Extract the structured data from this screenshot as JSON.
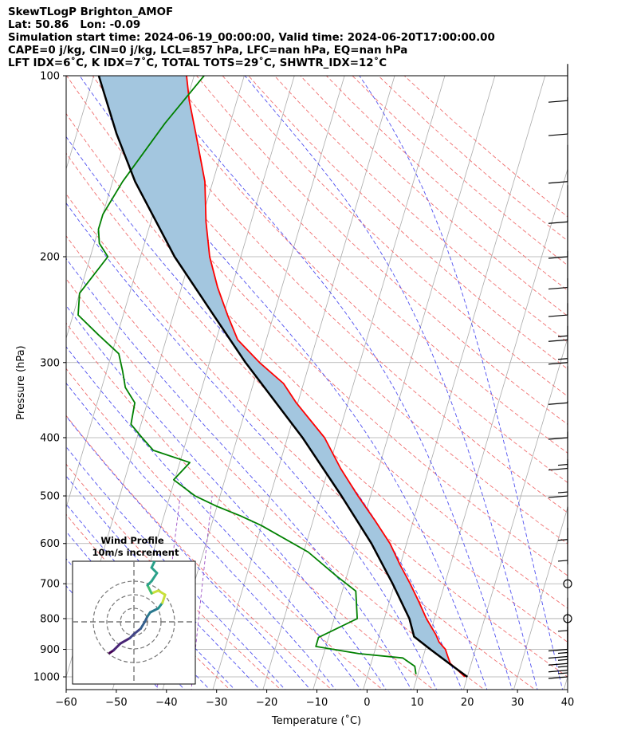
{
  "header": {
    "line1": "SkewTLogP Brighton_AMOF",
    "line2": "Lat: 50.86   Lon: -0.09",
    "line3": "Simulation start time: 2024-06-19_00:00:00, Valid time: 2024-06-20T17:00:00.00",
    "line4": "CAPE=0 j/kg, CIN=0 j/kg, LCL=857 hPa, LFC=nan hPa, EQ=nan hPa",
    "line5": "LFT IDX=6˚C, K IDX=7˚C, TOTAL TOTS=29˚C, SHWTR_IDX=12˚C"
  },
  "chart_data": {
    "type": "line",
    "subtype": "skew-t log-p",
    "xlabel": "Temperature (˚C)",
    "ylabel": "Pressure (hPa)",
    "xlim": [
      -60,
      40
    ],
    "ylim": [
      1050,
      100
    ],
    "y_scale": "log",
    "x_ticks": [
      "−60",
      "−50",
      "−40",
      "−30",
      "−20",
      "−10",
      "0",
      "10",
      "20",
      "30",
      "40"
    ],
    "y_ticks": [
      "100",
      "200",
      "300",
      "400",
      "500",
      "600",
      "700",
      "800",
      "900",
      "1000"
    ],
    "grid": true,
    "colors": {
      "temperature": "#ff0000",
      "dewpoint": "#008000",
      "parcel": "#000000",
      "cape_fill": "#a3c6df",
      "dry_adiabat": "#f07070",
      "moist_adiabat": "#5050f0",
      "mixing_ratio": "#9c4fc4",
      "isotherm": "#aaaaaa"
    },
    "series": [
      {
        "key": "temperature",
        "p": [
          1000,
          975,
          950,
          925,
          900,
          875,
          850,
          800,
          750,
          700,
          650,
          600,
          550,
          500,
          450,
          400,
          350,
          325,
          300,
          275,
          250,
          225,
          200,
          175,
          150,
          125,
          110,
          100
        ],
        "t": [
          19.5,
          17.7,
          15.8,
          14.9,
          14.0,
          12.3,
          11.2,
          8.4,
          5.9,
          3.1,
          -0.1,
          -3.3,
          -7.6,
          -12.5,
          -17.6,
          -22.6,
          -30.3,
          -34.0,
          -40.0,
          -45.7,
          -49.2,
          -52.8,
          -56.2,
          -59.0,
          -61.6,
          -66.2,
          -69.5,
          -71.5
        ]
      },
      {
        "key": "dewpoint",
        "p": [
          990,
          960,
          930,
          915,
          890,
          860,
          800,
          720,
          680,
          620,
          560,
          540,
          520,
          500,
          470,
          440,
          420,
          400,
          380,
          350,
          330,
          310,
          290,
          270,
          250,
          230,
          200,
          190,
          180,
          170,
          150,
          120,
          100
        ],
        "t": [
          9.6,
          8.9,
          6.0,
          -3.0,
          -12.0,
          -12.0,
          -5.4,
          -7.3,
          -12.0,
          -19.1,
          -30.0,
          -34.7,
          -40.1,
          -45.0,
          -50.2,
          -48.0,
          -56.0,
          -59.0,
          -62.0,
          -62.5,
          -65.3,
          -66.8,
          -68.6,
          -73.7,
          -79.0,
          -80.0,
          -76.5,
          -79.0,
          -80.0,
          -80.0,
          -78.0,
          -73.0,
          -68.0
        ]
      },
      {
        "key": "parcel",
        "p": [
          1000,
          950,
          900,
          857,
          800,
          700,
          600,
          500,
          400,
          300,
          250,
          200,
          150,
          125,
          100
        ],
        "t": [
          20.0,
          15.6,
          11.0,
          7.0,
          5.0,
          -0.4,
          -7.0,
          -15.8,
          -27.0,
          -42.8,
          -52.0,
          -63.2,
          -75.5,
          -82.0,
          -89.0
        ]
      }
    ],
    "wind_barbs": [
      {
        "p": 1000,
        "speed_kt": 13
      },
      {
        "p": 975,
        "speed_kt": 14
      },
      {
        "p": 950,
        "speed_kt": 15
      },
      {
        "p": 925,
        "speed_kt": 14
      },
      {
        "p": 900,
        "speed_kt": 11
      },
      {
        "p": 850,
        "speed_kt": 6
      },
      {
        "p": 800,
        "speed_kt": 0
      },
      {
        "p": 700,
        "speed_kt": 0
      },
      {
        "p": 650,
        "speed_kt": 5
      },
      {
        "p": 600,
        "speed_kt": 5
      },
      {
        "p": 500,
        "speed_kt": 15
      },
      {
        "p": 450,
        "speed_kt": 15
      },
      {
        "p": 400,
        "speed_kt": 10
      },
      {
        "p": 350,
        "speed_kt": 10
      },
      {
        "p": 300,
        "speed_kt": 15
      },
      {
        "p": 275,
        "speed_kt": 15
      },
      {
        "p": 250,
        "speed_kt": 10
      },
      {
        "p": 225,
        "speed_kt": 10
      },
      {
        "p": 200,
        "speed_kt": 10
      },
      {
        "p": 175,
        "speed_kt": 10
      },
      {
        "p": 150,
        "speed_kt": 10
      },
      {
        "p": 125,
        "speed_kt": 10
      },
      {
        "p": 110,
        "speed_kt": 10
      }
    ],
    "hodograph": {
      "title": "Wind Profile",
      "subtitle": "10m/s increment",
      "rings": [
        1,
        2,
        3
      ],
      "u": [
        -1.8,
        -1.5,
        -1.0,
        -0.3,
        0.0,
        0.5,
        0.8,
        1.0,
        1.2,
        1.8,
        2.1,
        2.3,
        1.8,
        1.3,
        1.0,
        1.3,
        1.7,
        1.3,
        1.5,
        1.1
      ],
      "v": [
        -2.3,
        -2.1,
        -1.6,
        -1.2,
        -0.9,
        -0.5,
        0.0,
        0.4,
        0.7,
        1.0,
        1.4,
        2.0,
        2.3,
        2.1,
        2.7,
        3.0,
        3.6,
        4.0,
        4.4,
        4.9
      ]
    }
  }
}
